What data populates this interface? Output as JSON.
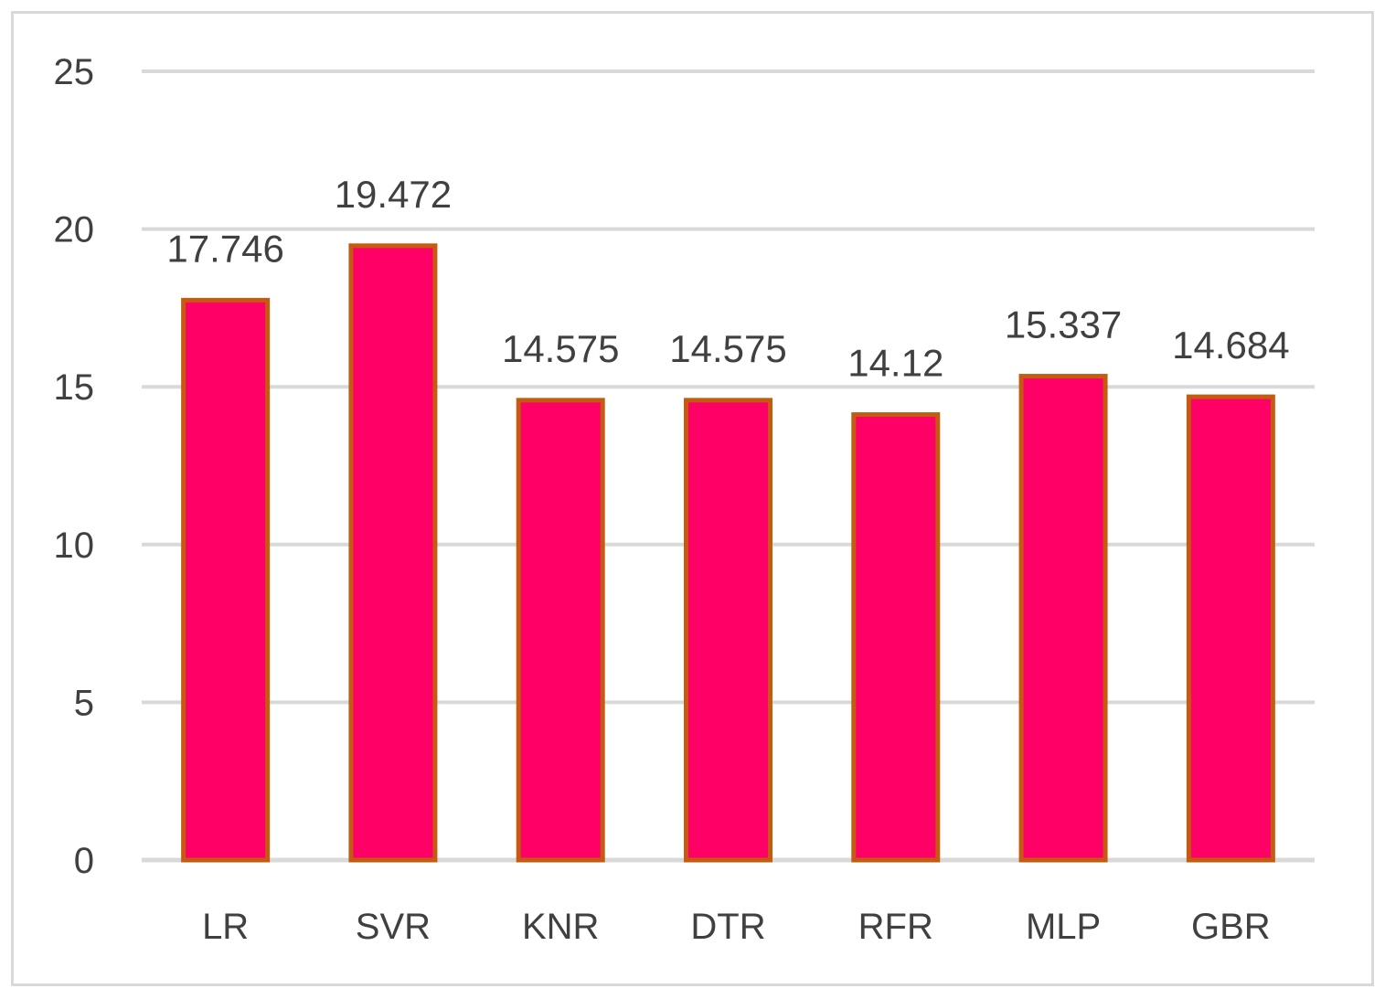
{
  "chart_data": {
    "type": "bar",
    "title": "",
    "xlabel": "",
    "ylabel": "",
    "categories": [
      "LR",
      "SVR",
      "KNR",
      "DTR",
      "RFR",
      "MLP",
      "GBR"
    ],
    "values": [
      17.746,
      19.472,
      14.575,
      14.575,
      14.12,
      15.337,
      14.684
    ],
    "data_labels": [
      "17.746",
      "19.472",
      "14.575",
      "14.575",
      "14.12",
      "15.337",
      "14.684"
    ],
    "ylim": [
      0,
      25
    ],
    "yticks": [
      0,
      5,
      10,
      15,
      20,
      25
    ],
    "ytick_labels": [
      "0",
      "5",
      "10",
      "15",
      "20",
      "25"
    ],
    "grid": true,
    "legend": "none",
    "colors": {
      "bar_fill": "#ff0066",
      "bar_border": "#c55a11",
      "grid": "#d9d9d9",
      "text": "#404040"
    }
  }
}
